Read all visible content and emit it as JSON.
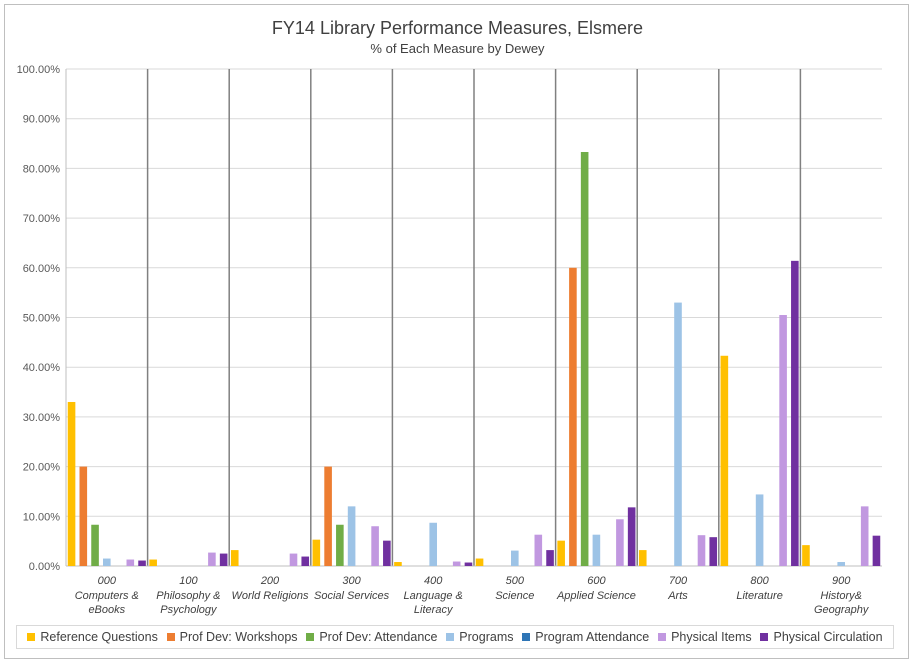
{
  "chart_data": {
    "type": "bar",
    "title": "FY14 Library Performance Measures, Elsmere",
    "subtitle": "% of Each Measure by Dewey",
    "xlabel": "",
    "ylabel": "",
    "ylim": [
      0,
      100
    ],
    "yticks": [
      "0.00%",
      "10.00%",
      "20.00%",
      "30.00%",
      "40.00%",
      "50.00%",
      "60.00%",
      "70.00%",
      "80.00%",
      "90.00%",
      "100.00%"
    ],
    "categories": [
      {
        "code": "000",
        "label": [
          "Computers &",
          "eBooks"
        ]
      },
      {
        "code": "100",
        "label": [
          "Philosophy &",
          "Psychology"
        ]
      },
      {
        "code": "200",
        "label": [
          "World Religions"
        ]
      },
      {
        "code": "300",
        "label": [
          "Social Services"
        ]
      },
      {
        "code": "400",
        "label": [
          "Language &",
          "Literacy"
        ]
      },
      {
        "code": "500",
        "label": [
          "Science"
        ]
      },
      {
        "code": "600",
        "label": [
          "Applied Science"
        ]
      },
      {
        "code": "700",
        "label": [
          "Arts"
        ]
      },
      {
        "code": "800",
        "label": [
          "Literature"
        ]
      },
      {
        "code": "900",
        "label": [
          "History&",
          "Geography"
        ]
      }
    ],
    "series": [
      {
        "name": "Reference Questions",
        "color": "#FFC000",
        "values": [
          33.0,
          1.3,
          3.2,
          5.3,
          0.8,
          1.5,
          5.1,
          3.2,
          42.3,
          4.2
        ]
      },
      {
        "name": "Prof Dev: Workshops",
        "color": "#ED7D31",
        "values": [
          20.0,
          0,
          0,
          20.0,
          0,
          0,
          60.0,
          0,
          0,
          0
        ]
      },
      {
        "name": "Prof Dev: Attendance",
        "color": "#70AD47",
        "values": [
          8.3,
          0,
          0,
          8.3,
          0,
          0,
          83.3,
          0,
          0,
          0
        ]
      },
      {
        "name": "Programs",
        "color": "#9DC3E6",
        "values": [
          1.5,
          0,
          0,
          12.0,
          8.7,
          3.1,
          6.3,
          53.0,
          14.4,
          0.8
        ]
      },
      {
        "name": "Program Attendance",
        "color": "#2E75B6",
        "values": [
          0,
          0,
          0,
          0,
          0,
          0,
          0,
          0,
          0,
          0
        ]
      },
      {
        "name": "Physical Items",
        "color": "#C198E0",
        "values": [
          1.3,
          2.7,
          2.5,
          8.0,
          0.9,
          6.3,
          9.4,
          6.2,
          50.5,
          12.0
        ]
      },
      {
        "name": "Physical Circulation",
        "color": "#7030A0",
        "values": [
          1.1,
          2.5,
          1.9,
          5.1,
          0.7,
          3.2,
          11.8,
          5.8,
          61.4,
          6.1
        ]
      }
    ],
    "grid": true,
    "legend_position": "bottom"
  }
}
